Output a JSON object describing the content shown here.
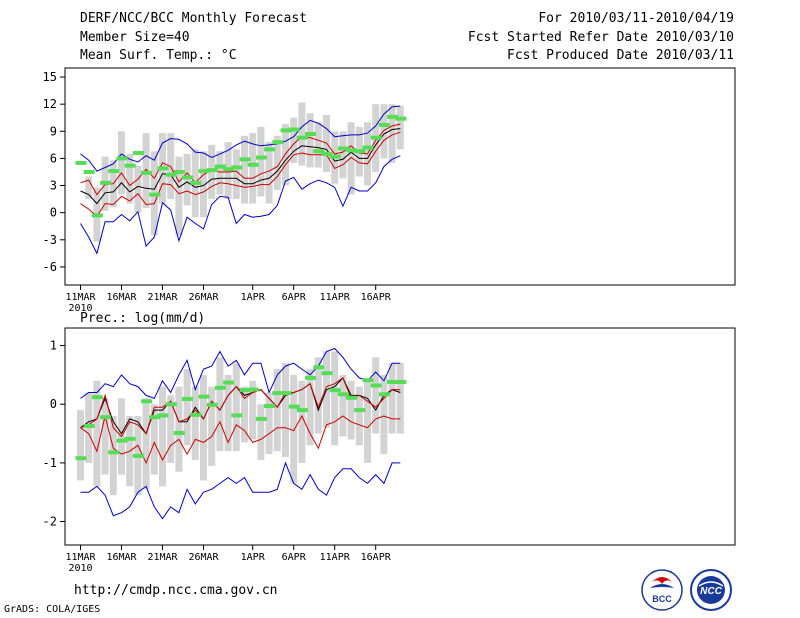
{
  "header": {
    "title": "DERF/NCC/BCC Monthly Forecast",
    "member_size": "Member Size=40",
    "variable": "Mean Surf. Temp.: °C",
    "period": "For 2010/03/11-2010/04/19",
    "refer_date": "Fcst Started Refer Date 2010/03/10",
    "produced_date": "Fcst Produced Date 2010/03/11"
  },
  "footer": {
    "url": "http://cmdp.ncc.cma.gov.cn",
    "credit": "GrADS: COLA/IGES"
  },
  "logos": {
    "bcc_label": "BCC",
    "ncc_label": "NCC"
  },
  "colors": {
    "envelope": "#0000cc",
    "spread": "#cc0000",
    "mean": "#000000",
    "observed": "#55dd55",
    "box": "#d3d3d3"
  },
  "chart_data": [
    {
      "type": "line",
      "name": "temperature",
      "title": "Mean Surf. Temp.: °C",
      "ylim": [
        -8,
        16
      ],
      "yticks": [
        -6,
        -3,
        0,
        3,
        6,
        9,
        12,
        15
      ],
      "ytick_labels": [
        "-6",
        "-3",
        "0",
        "3",
        "6",
        "9",
        "12",
        "15"
      ],
      "x_ticks": [
        {
          "day": 0,
          "label": "11MAR",
          "sub": "2010"
        },
        {
          "day": 5,
          "label": "16MAR"
        },
        {
          "day": 10,
          "label": "21MAR"
        },
        {
          "day": 15,
          "label": "26MAR"
        },
        {
          "day": 21,
          "label": "1APR"
        },
        {
          "day": 26,
          "label": "6APR"
        },
        {
          "day": 31,
          "label": "11APR"
        },
        {
          "day": 36,
          "label": "16APR"
        }
      ],
      "series": [
        {
          "name": "max",
          "color": "#0000cc",
          "values": [
            6.5,
            5.8,
            4.6,
            5.0,
            5.4,
            6.5,
            5.9,
            5.6,
            6.3,
            5.8,
            7.7,
            8.2,
            8.1,
            7.6,
            6.7,
            6.6,
            6.1,
            6.5,
            6.9,
            7.5,
            7.9,
            7.6,
            7.4,
            7.5,
            7.6,
            7.9,
            8.4,
            9.5,
            10.2,
            9.9,
            9.3,
            8.4,
            8.5,
            8.6,
            8.6,
            8.8,
            9.6,
            10.9,
            11.7,
            11.8
          ]
        },
        {
          "name": "upper",
          "color": "#cc0000",
          "values": [
            3.3,
            3.6,
            2.0,
            3.1,
            3.2,
            4.4,
            3.0,
            3.7,
            4.8,
            3.8,
            5.5,
            5.1,
            3.4,
            4.4,
            3.3,
            4.2,
            4.7,
            4.5,
            4.5,
            4.6,
            3.8,
            3.8,
            4.3,
            4.6,
            5.1,
            6.5,
            7.6,
            8.4,
            8.3,
            8.0,
            7.7,
            6.5,
            6.7,
            7.4,
            6.6,
            6.5,
            8.0,
            9.1,
            9.6,
            9.8
          ]
        },
        {
          "name": "mean",
          "color": "#000000",
          "values": [
            2.4,
            2.0,
            1.0,
            2.2,
            2.3,
            3.3,
            2.3,
            2.9,
            2.7,
            2.6,
            4.3,
            4.2,
            2.8,
            3.4,
            2.8,
            3.0,
            3.7,
            3.8,
            3.8,
            3.8,
            3.2,
            3.2,
            3.6,
            3.8,
            4.6,
            5.8,
            6.8,
            7.4,
            7.3,
            7.2,
            7.0,
            5.7,
            5.9,
            6.7,
            6.0,
            6.0,
            7.5,
            8.7,
            9.2,
            9.3
          ]
        },
        {
          "name": "lower",
          "color": "#cc0000",
          "values": [
            1.0,
            0.4,
            -0.4,
            1.0,
            0.9,
            1.8,
            1.3,
            2.1,
            0.9,
            1.0,
            3.2,
            3.1,
            2.1,
            2.4,
            2.0,
            2.3,
            2.9,
            3.3,
            3.2,
            3.0,
            2.8,
            2.9,
            3.1,
            3.1,
            4.0,
            5.3,
            6.4,
            6.6,
            6.4,
            6.4,
            6.4,
            4.9,
            5.3,
            6.1,
            5.5,
            5.4,
            6.8,
            8.0,
            8.6,
            8.9
          ]
        },
        {
          "name": "min",
          "color": "#0000cc",
          "values": [
            -1.2,
            -2.7,
            -4.5,
            -1.0,
            -1.0,
            -0.2,
            -0.9,
            0.1,
            -3.7,
            -2.7,
            1.1,
            0.3,
            -3.1,
            -0.5,
            -1.2,
            -1.8,
            0.9,
            1.8,
            1.7,
            -1.2,
            -0.2,
            -0.5,
            -0.4,
            -0.2,
            0.8,
            3.5,
            3.9,
            2.6,
            3.2,
            3.6,
            3.3,
            2.8,
            0.7,
            2.8,
            2.4,
            2.4,
            3.3,
            5.1,
            5.9,
            6.3
          ]
        }
      ],
      "observed": [
        5.5,
        4.5,
        -0.3,
        3.3,
        4.6,
        6.0,
        5.2,
        6.6,
        4.4,
        2.0,
        4.9,
        4.2,
        4.5,
        3.9,
        3.3,
        4.6,
        4.7,
        5.1,
        4.8,
        5.0,
        5.9,
        5.3,
        6.1,
        7.0,
        7.8,
        9.1,
        9.2,
        8.3,
        8.7,
        6.8,
        6.5,
        6.2,
        7.1,
        6.9,
        6.8,
        7.2,
        8.3,
        9.7,
        10.6,
        10.4
      ],
      "boxes": [
        {
          "day": 1,
          "lo": 1.5,
          "hi": 4.0
        },
        {
          "day": 2,
          "lo": -3.2,
          "hi": 2.8
        },
        {
          "day": 3,
          "lo": 0.2,
          "hi": 6.2
        },
        {
          "day": 4,
          "lo": 0.6,
          "hi": 5.8
        },
        {
          "day": 5,
          "lo": 2.0,
          "hi": 9.0
        },
        {
          "day": 6,
          "lo": 1.0,
          "hi": 6.5
        },
        {
          "day": 7,
          "lo": 0.0,
          "hi": 5.2
        },
        {
          "day": 8,
          "lo": 0.5,
          "hi": 8.8
        },
        {
          "day": 9,
          "lo": -2.5,
          "hi": 6.8
        },
        {
          "day": 10,
          "lo": 1.0,
          "hi": 8.8
        },
        {
          "day": 11,
          "lo": 1.5,
          "hi": 8.8
        },
        {
          "day": 12,
          "lo": -2.5,
          "hi": 6.2
        },
        {
          "day": 13,
          "lo": 0.8,
          "hi": 6.5
        },
        {
          "day": 14,
          "lo": -0.5,
          "hi": 7.0
        },
        {
          "day": 15,
          "lo": -0.5,
          "hi": 6.8
        },
        {
          "day": 16,
          "lo": 1.5,
          "hi": 7.5
        },
        {
          "day": 17,
          "lo": 2.0,
          "hi": 6.8
        },
        {
          "day": 18,
          "lo": 1.5,
          "hi": 7.8
        },
        {
          "day": 19,
          "lo": 1.5,
          "hi": 7.0
        },
        {
          "day": 20,
          "lo": 1.0,
          "hi": 8.5
        },
        {
          "day": 21,
          "lo": 1.0,
          "hi": 8.8
        },
        {
          "day": 22,
          "lo": 1.8,
          "hi": 9.5
        },
        {
          "day": 23,
          "lo": 1.0,
          "hi": 7.8
        },
        {
          "day": 24,
          "lo": 2.5,
          "hi": 8.5
        },
        {
          "day": 25,
          "lo": 3.0,
          "hi": 9.8
        },
        {
          "day": 26,
          "lo": 5.5,
          "hi": 10.5
        },
        {
          "day": 27,
          "lo": 5.2,
          "hi": 12.2
        },
        {
          "day": 28,
          "lo": 5.0,
          "hi": 11.0
        },
        {
          "day": 29,
          "lo": 5.0,
          "hi": 10.0
        },
        {
          "day": 30,
          "lo": 4.5,
          "hi": 10.8
        },
        {
          "day": 31,
          "lo": 3.2,
          "hi": 9.0
        },
        {
          "day": 32,
          "lo": 3.8,
          "hi": 9.0
        },
        {
          "day": 33,
          "lo": 2.0,
          "hi": 10.0
        },
        {
          "day": 34,
          "lo": 4.0,
          "hi": 9.5
        },
        {
          "day": 35,
          "lo": 3.0,
          "hi": 10.0
        },
        {
          "day": 36,
          "lo": 4.5,
          "hi": 12.0
        },
        {
          "day": 37,
          "lo": 6.0,
          "hi": 12.0
        },
        {
          "day": 38,
          "lo": 5.5,
          "hi": 12.0
        },
        {
          "day": 39,
          "lo": 7.0,
          "hi": 11.8
        }
      ]
    },
    {
      "type": "line",
      "name": "precipitation",
      "title": "Prec.: log(mm/d)",
      "ylim": [
        -2.4,
        1.3
      ],
      "yticks": [
        -2,
        -1,
        0,
        1
      ],
      "ytick_labels": [
        "-2",
        "-1",
        "0",
        "1"
      ],
      "x_ticks": [
        {
          "day": 0,
          "label": "11MAR",
          "sub": "2010"
        },
        {
          "day": 5,
          "label": "16MAR"
        },
        {
          "day": 10,
          "label": "21MAR"
        },
        {
          "day": 15,
          "label": "26MAR"
        },
        {
          "day": 21,
          "label": "1APR"
        },
        {
          "day": 26,
          "label": "6APR"
        },
        {
          "day": 31,
          "label": "11APR"
        },
        {
          "day": 36,
          "label": "16APR"
        }
      ],
      "series": [
        {
          "name": "max",
          "color": "#0000cc",
          "values": [
            0.1,
            0.2,
            0.2,
            0.35,
            0.3,
            0.5,
            0.35,
            0.3,
            0.15,
            0.1,
            0.4,
            0.2,
            0.5,
            0.75,
            0.25,
            0.6,
            0.65,
            0.9,
            0.65,
            0.75,
            0.5,
            0.7,
            0.7,
            0.2,
            0.5,
            0.65,
            0.7,
            0.6,
            0.5,
            0.65,
            0.9,
            0.95,
            0.8,
            0.6,
            0.45,
            0.4,
            0.55,
            0.4,
            0.7,
            0.7
          ]
        },
        {
          "name": "upper",
          "color": "#000000",
          "values": [
            -0.4,
            -0.3,
            -0.25,
            0.1,
            -0.3,
            -0.5,
            -0.25,
            -0.3,
            -0.5,
            -0.1,
            -0.1,
            0.05,
            -0.3,
            -0.3,
            -0.05,
            -0.25,
            0.05,
            -0.1,
            0.15,
            0.3,
            0.15,
            0.2,
            0.25,
            0.1,
            -0.05,
            0.15,
            0.2,
            0.25,
            0.35,
            -0.1,
            0.25,
            0.3,
            0.45,
            0.15,
            0.15,
            0.1,
            -0.1,
            0.15,
            0.25,
            0.2
          ]
        },
        {
          "name": "mean",
          "color": "#cc0000",
          "values": [
            -0.4,
            -0.35,
            -0.25,
            0.15,
            -0.4,
            -0.55,
            -0.3,
            -0.35,
            -0.5,
            -0.05,
            -0.05,
            0.05,
            -0.3,
            -0.25,
            -0.1,
            -0.25,
            0.05,
            -0.1,
            0.15,
            0.3,
            0.1,
            0.2,
            0.25,
            0.1,
            -0.05,
            0.2,
            0.2,
            0.25,
            0.35,
            -0.05,
            0.3,
            0.35,
            0.45,
            0.1,
            0.15,
            0.05,
            -0.05,
            0.1,
            0.25,
            0.25
          ]
        },
        {
          "name": "lower",
          "color": "#cc0000",
          "values": [
            -0.4,
            -0.5,
            -0.8,
            -0.2,
            -0.75,
            -0.85,
            -0.8,
            -0.7,
            -1.0,
            -0.65,
            -0.95,
            -0.7,
            -0.6,
            -0.85,
            -0.6,
            -0.65,
            -0.55,
            -0.3,
            -0.65,
            -0.35,
            -0.45,
            -0.65,
            -0.6,
            -0.5,
            -0.4,
            -0.4,
            -0.45,
            -0.2,
            -0.5,
            -0.75,
            -0.35,
            -0.3,
            -0.2,
            -0.3,
            -0.35,
            -0.4,
            -0.25,
            -0.2,
            -0.25,
            -0.25
          ]
        },
        {
          "name": "min",
          "color": "#0000cc",
          "values": [
            -1.5,
            -1.5,
            -1.4,
            -1.55,
            -1.9,
            -1.85,
            -1.75,
            -1.5,
            -1.4,
            -1.75,
            -1.95,
            -1.75,
            -1.85,
            -1.45,
            -1.7,
            -1.5,
            -1.45,
            -1.35,
            -1.25,
            -1.35,
            -1.25,
            -1.5,
            -1.5,
            -1.5,
            -1.45,
            -1.0,
            -1.35,
            -1.45,
            -1.2,
            -1.45,
            -1.55,
            -1.25,
            -1.1,
            -1.1,
            -1.25,
            -1.35,
            -1.2,
            -1.35,
            -1.0,
            -1.0
          ]
        }
      ],
      "observed": [
        -0.92,
        -0.37,
        0.12,
        -0.22,
        -0.82,
        -0.62,
        -0.59,
        -0.88,
        0.05,
        -0.22,
        -0.19,
        0.0,
        -0.49,
        0.09,
        -0.18,
        0.13,
        -0.01,
        0.28,
        0.37,
        -0.19,
        0.24,
        0.25,
        -0.25,
        -0.03,
        0.19,
        0.19,
        -0.04,
        -0.1,
        0.45,
        0.63,
        0.53,
        0.24,
        0.17,
        0.11,
        -0.1,
        0.41,
        0.32,
        0.17,
        0.38,
        0.38
      ],
      "boxes": [
        {
          "day": 0,
          "lo": -1.3,
          "hi": -0.1
        },
        {
          "day": 1,
          "lo": -1.0,
          "hi": 0.2
        },
        {
          "day": 2,
          "lo": -1.4,
          "hi": 0.4
        },
        {
          "day": 3,
          "lo": -1.2,
          "hi": 0.1
        },
        {
          "day": 4,
          "lo": -1.55,
          "hi": -0.2
        },
        {
          "day": 5,
          "lo": -1.2,
          "hi": 0.1
        },
        {
          "day": 6,
          "lo": -1.4,
          "hi": -0.2
        },
        {
          "day": 7,
          "lo": -1.55,
          "hi": -0.2
        },
        {
          "day": 8,
          "lo": -1.45,
          "hi": 0.1
        },
        {
          "day": 9,
          "lo": -1.2,
          "hi": 0.0
        },
        {
          "day": 10,
          "lo": -1.4,
          "hi": 0.3
        },
        {
          "day": 11,
          "lo": -1.0,
          "hi": 0.15
        },
        {
          "day": 12,
          "lo": -1.15,
          "hi": 0.3
        },
        {
          "day": 13,
          "lo": -0.7,
          "hi": 0.6
        },
        {
          "day": 14,
          "lo": -0.95,
          "hi": 0.3
        },
        {
          "day": 15,
          "lo": -1.3,
          "hi": 0.5
        },
        {
          "day": 16,
          "lo": -1.05,
          "hi": 0.3
        },
        {
          "day": 17,
          "lo": -0.8,
          "hi": 0.8
        },
        {
          "day": 18,
          "lo": -0.8,
          "hi": 0.5
        },
        {
          "day": 19,
          "lo": -0.8,
          "hi": 0.7
        },
        {
          "day": 20,
          "lo": -0.65,
          "hi": 0.3
        },
        {
          "day": 21,
          "lo": -0.6,
          "hi": 0.4
        },
        {
          "day": 22,
          "lo": -0.95,
          "hi": 0.0
        },
        {
          "day": 23,
          "lo": -0.85,
          "hi": 0.2
        },
        {
          "day": 24,
          "lo": -0.8,
          "hi": 0.6
        },
        {
          "day": 25,
          "lo": -0.9,
          "hi": 0.7
        },
        {
          "day": 26,
          "lo": -1.35,
          "hi": 0.5
        },
        {
          "day": 27,
          "lo": -1.0,
          "hi": 0.4
        },
        {
          "day": 28,
          "lo": -0.7,
          "hi": 0.6
        },
        {
          "day": 29,
          "lo": -0.5,
          "hi": 0.8
        },
        {
          "day": 30,
          "lo": -0.4,
          "hi": 0.9
        },
        {
          "day": 31,
          "lo": -0.7,
          "hi": 0.9
        },
        {
          "day": 32,
          "lo": -0.55,
          "hi": 0.5
        },
        {
          "day": 33,
          "lo": -0.6,
          "hi": 0.4
        },
        {
          "day": 34,
          "lo": -0.7,
          "hi": 0.3
        },
        {
          "day": 35,
          "lo": -1.0,
          "hi": 0.4
        },
        {
          "day": 36,
          "lo": -0.5,
          "hi": 0.8
        },
        {
          "day": 37,
          "lo": -0.85,
          "hi": 0.5
        },
        {
          "day": 38,
          "lo": -0.5,
          "hi": 0.7
        },
        {
          "day": 39,
          "lo": -0.5,
          "hi": 0.7
        }
      ]
    }
  ]
}
